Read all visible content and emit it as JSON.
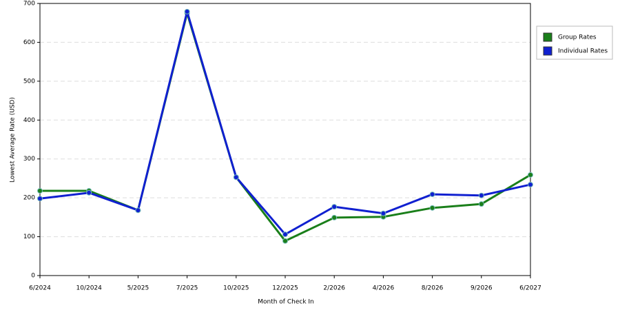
{
  "chart_data": {
    "type": "line",
    "x_label": "Month of Check In",
    "y_label": "Lowest Average Rate (USD)",
    "categories": [
      "6/2024",
      "10/2024",
      "5/2025",
      "7/2025",
      "10/2025",
      "12/2025",
      "2/2026",
      "4/2026",
      "8/2026",
      "9/2026",
      "6/2027"
    ],
    "series": [
      {
        "name": "Group Rates",
        "color": "#1a7f1a",
        "values": [
          218,
          218,
          168,
          675,
          253,
          89,
          149,
          151,
          174,
          184,
          259
        ]
      },
      {
        "name": "Individual Rates",
        "color": "#1020d0",
        "values": [
          198,
          213,
          168,
          679,
          253,
          106,
          177,
          160,
          209,
          206,
          234
        ]
      }
    ],
    "ylim": [
      0,
      700
    ],
    "yticks": [
      0,
      100,
      200,
      300,
      400,
      500,
      600,
      700
    ],
    "grid": true,
    "legend": "right"
  }
}
